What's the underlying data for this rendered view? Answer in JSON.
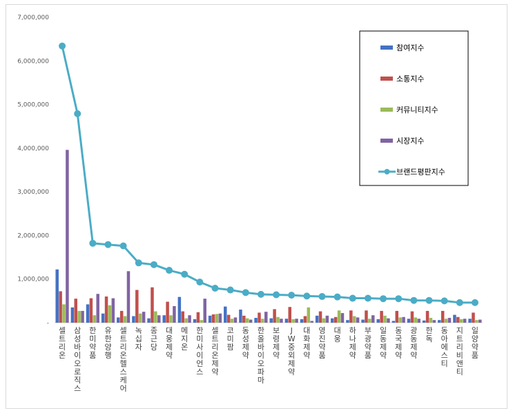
{
  "chart_data": {
    "type": "bar",
    "title": "",
    "xlabel": "",
    "ylabel": "",
    "ylim": [
      0,
      7000000
    ],
    "yticks": [
      0,
      1000000,
      2000000,
      3000000,
      4000000,
      5000000,
      6000000,
      7000000
    ],
    "ytick_labels": [
      "-",
      "1,000,000",
      "2,000,000",
      "3,000,000",
      "4,000,000",
      "5,000,000",
      "6,000,000",
      "7,000,000"
    ],
    "grid": false,
    "legend_position": "top-right",
    "categories": [
      "셀트리온",
      "삼성바이오로직스",
      "한미약품",
      "유한양행",
      "셀트리온헬스케어",
      "녹십자",
      "종근당",
      "대웅제약",
      "메지온",
      "한미사이언스",
      "셀트리온제약",
      "코미팜",
      "동성제약",
      "한올바이오파마",
      "보령제약",
      "JW중외제약",
      "대화제약",
      "영진약품",
      "대웅",
      "하나제약",
      "부광약품",
      "일동제약",
      "동국제약",
      "광동제약",
      "한독",
      "동아에스티",
      "지트리비앤티",
      "일양약품"
    ],
    "series": [
      {
        "name": "참여지수",
        "type": "bar",
        "color": "#4472c4",
        "values": [
          1220000,
          350000,
          420000,
          210000,
          120000,
          150000,
          100000,
          170000,
          590000,
          80000,
          160000,
          370000,
          300000,
          110000,
          100000,
          90000,
          80000,
          160000,
          100000,
          60000,
          70000,
          80000,
          40000,
          90000,
          50000,
          60000,
          180000,
          90000
        ]
      },
      {
        "name": "소통지수",
        "type": "bar",
        "color": "#c0504d",
        "values": [
          720000,
          550000,
          560000,
          600000,
          270000,
          750000,
          810000,
          480000,
          260000,
          240000,
          190000,
          180000,
          160000,
          230000,
          310000,
          360000,
          150000,
          260000,
          130000,
          280000,
          280000,
          270000,
          270000,
          260000,
          270000,
          270000,
          130000,
          230000
        ]
      },
      {
        "name": "커뮤니티지수",
        "type": "bar",
        "color": "#9bbb59",
        "values": [
          420000,
          270000,
          170000,
          400000,
          150000,
          210000,
          260000,
          170000,
          100000,
          60000,
          200000,
          90000,
          100000,
          90000,
          130000,
          80000,
          350000,
          100000,
          280000,
          150000,
          90000,
          160000,
          120000,
          120000,
          110000,
          90000,
          80000,
          60000
        ]
      },
      {
        "name": "시장지수",
        "type": "bar",
        "color": "#8064a2",
        "values": [
          3960000,
          270000,
          660000,
          560000,
          1180000,
          250000,
          170000,
          380000,
          170000,
          550000,
          210000,
          120000,
          70000,
          250000,
          90000,
          90000,
          40000,
          160000,
          220000,
          120000,
          170000,
          100000,
          130000,
          90000,
          60000,
          110000,
          90000,
          70000
        ]
      },
      {
        "name": "브랜드평판지수",
        "type": "line",
        "color": "#4bacc6",
        "values": [
          6340000,
          4790000,
          1820000,
          1790000,
          1760000,
          1370000,
          1330000,
          1200000,
          1110000,
          930000,
          790000,
          750000,
          690000,
          650000,
          640000,
          630000,
          610000,
          600000,
          590000,
          560000,
          560000,
          550000,
          550000,
          510000,
          510000,
          500000,
          460000,
          460000
        ]
      }
    ]
  }
}
